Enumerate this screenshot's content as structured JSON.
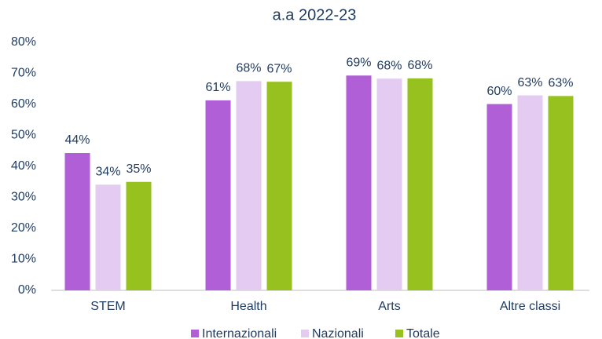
{
  "chart_data": {
    "type": "bar",
    "title": "a.a 2022-23",
    "categories": [
      "STEM",
      "Health",
      "Arts",
      "Altre classi"
    ],
    "series": [
      {
        "name": "Internazionali",
        "color": "#b05fd6",
        "values": [
          44.3,
          61.3,
          69.3,
          60.1
        ],
        "value_labels": [
          "44%",
          "61%",
          "69%",
          "60%"
        ]
      },
      {
        "name": "Nazionali",
        "color": "#e4cbf1",
        "values": [
          34.1,
          67.5,
          68.3,
          62.9
        ],
        "value_labels": [
          "34%",
          "68%",
          "68%",
          "63%"
        ]
      },
      {
        "name": "Totale",
        "color": "#97c11f",
        "values": [
          35.0,
          67.3,
          68.4,
          62.7
        ],
        "value_labels": [
          "35%",
          "67%",
          "68%",
          "63%"
        ]
      }
    ],
    "ylim": [
      0,
      80
    ],
    "yticks": [
      {
        "value": 0,
        "label": "0%"
      },
      {
        "value": 10,
        "label": "10%"
      },
      {
        "value": 20,
        "label": "20%"
      },
      {
        "value": 30,
        "label": "30%"
      },
      {
        "value": 40,
        "label": "40%"
      },
      {
        "value": 50,
        "label": "50%"
      },
      {
        "value": 60,
        "label": "60%"
      },
      {
        "value": 70,
        "label": "70%"
      },
      {
        "value": 80,
        "label": "80%"
      }
    ],
    "grid": false,
    "legend": "bottom"
  }
}
